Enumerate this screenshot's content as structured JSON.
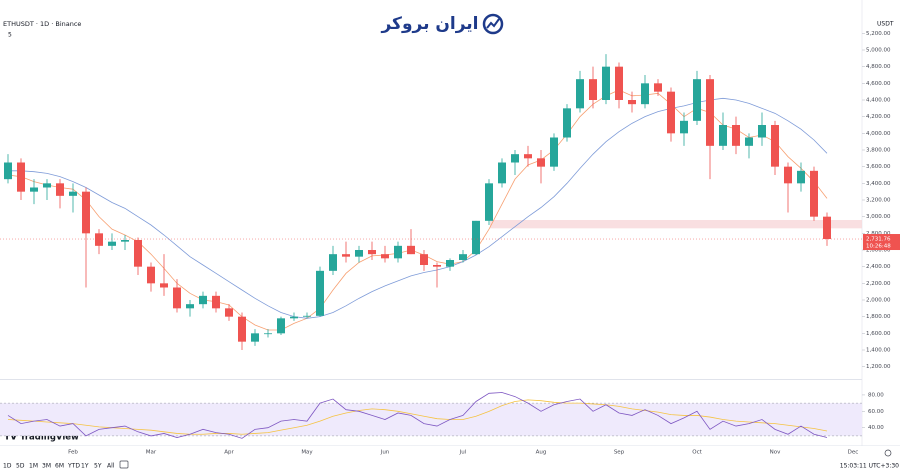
{
  "header": {
    "symbol": "ETHUSDT · 1D · Binance",
    "indicators": "5",
    "currency": "USDT",
    "watermark": "ایران بروکر"
  },
  "footer": {
    "ranges": [
      "1D",
      "5D",
      "1M",
      "3M",
      "6M",
      "YTD",
      "1Y",
      "5Y",
      "All"
    ],
    "clock": "15:03:11 UTC+3:30",
    "brand": "TradingView"
  },
  "chart_data": [
    {
      "type": "candlestick",
      "up_color": "#26a69a",
      "down_color": "#ef5350",
      "categories": [
        null,
        null,
        null,
        null,
        null,
        "Feb",
        null,
        null,
        null,
        null,
        null,
        "Mar",
        null,
        null,
        null,
        null,
        null,
        "Apr",
        null,
        null,
        null,
        null,
        null,
        "May",
        null,
        null,
        null,
        null,
        null,
        "Jun",
        null,
        null,
        null,
        null,
        null,
        "Jul",
        null,
        null,
        null,
        null,
        null,
        "Aug",
        null,
        null,
        null,
        null,
        null,
        "Sep",
        null,
        null,
        null,
        null,
        null,
        "Oct",
        null,
        null,
        null,
        null,
        null,
        "Nov",
        null,
        null,
        null,
        null,
        null,
        "Dec",
        null
      ],
      "open": [
        3450,
        3650,
        3300,
        3350,
        3400,
        3250,
        3300,
        2800,
        2650,
        2700,
        2720,
        2400,
        2200,
        2150,
        1900,
        1950,
        2050,
        1900,
        1800,
        1500,
        1600,
        1600,
        1780,
        1800,
        1810,
        2350,
        2550,
        2520,
        2600,
        2550,
        2500,
        2650,
        2550,
        2420,
        2400,
        2480,
        2550,
        2950,
        3400,
        3650,
        3750,
        3700,
        3600,
        3950,
        4300,
        4650,
        4400,
        4800,
        4400,
        4350,
        4600,
        4500,
        4000,
        4150,
        4650,
        3850,
        4100,
        3850,
        3950,
        4100,
        3600,
        3400,
        3550,
        3000,
        null,
        null,
        null
      ],
      "high": [
        3750,
        3700,
        3450,
        3450,
        3450,
        3400,
        3350,
        2850,
        2800,
        2780,
        2750,
        2450,
        2550,
        2250,
        2000,
        2100,
        2100,
        1950,
        1850,
        1650,
        1650,
        1800,
        1850,
        1850,
        2400,
        2650,
        2700,
        2650,
        2700,
        2650,
        2700,
        2850,
        2600,
        2450,
        2500,
        2600,
        2950,
        3450,
        3700,
        3800,
        3850,
        3800,
        4000,
        4350,
        4750,
        4800,
        4950,
        4850,
        4500,
        4700,
        4650,
        4550,
        4250,
        4750,
        4700,
        4250,
        4200,
        4000,
        4250,
        4150,
        3650,
        3650,
        3600,
        3050,
        null,
        null,
        null
      ],
      "low": [
        3400,
        3200,
        3150,
        3200,
        3100,
        3050,
        2150,
        2550,
        2600,
        2600,
        2300,
        2100,
        2050,
        1850,
        1800,
        1900,
        1850,
        1750,
        1400,
        1450,
        1550,
        1580,
        1750,
        1780,
        1800,
        2300,
        2450,
        2450,
        2480,
        2450,
        2450,
        2550,
        2350,
        2150,
        2350,
        2450,
        2540,
        2900,
        3350,
        3500,
        3600,
        3400,
        3550,
        3900,
        4250,
        4300,
        4350,
        4300,
        4250,
        4300,
        4450,
        3900,
        3850,
        4100,
        3450,
        3800,
        3750,
        3700,
        3850,
        3500,
        3050,
        3300,
        2950,
        2650,
        null,
        null,
        null
      ],
      "close": [
        3650,
        3300,
        3350,
        3400,
        3250,
        3300,
        2800,
        2650,
        2700,
        2720,
        2400,
        2200,
        2150,
        1900,
        1950,
        2050,
        1900,
        1800,
        1500,
        1600,
        1600,
        1780,
        1800,
        1810,
        2350,
        2550,
        2520,
        2600,
        2550,
        2500,
        2650,
        2550,
        2420,
        2400,
        2480,
        2550,
        2950,
        3400,
        3650,
        3750,
        3700,
        3600,
        3950,
        4300,
        4650,
        4400,
        4800,
        4400,
        4350,
        4600,
        4500,
        4000,
        4150,
        4650,
        3850,
        4100,
        3850,
        3950,
        4100,
        3600,
        3400,
        3550,
        3000,
        2731.76,
        null,
        null,
        null
      ],
      "moving_averages": [
        {
          "color": "#f7a072",
          "values": [
            3500,
            3480,
            3420,
            3380,
            3350,
            3330,
            3200,
            3000,
            2850,
            2780,
            2700,
            2550,
            2380,
            2200,
            2080,
            2000,
            1980,
            1940,
            1800,
            1700,
            1640,
            1640,
            1720,
            1780,
            1900,
            2120,
            2320,
            2450,
            2530,
            2540,
            2560,
            2600,
            2540,
            2460,
            2430,
            2460,
            2600,
            2850,
            3150,
            3450,
            3620,
            3680,
            3800,
            3990,
            4200,
            4350,
            4450,
            4520,
            4450,
            4460,
            4480,
            4350,
            4200,
            4300,
            4250,
            4100,
            4050,
            3950,
            3980,
            3900,
            3720,
            3580,
            3420,
            3220,
            null,
            null,
            null
          ]
        },
        {
          "color": "#7e9bd8",
          "values": [
            3550,
            3550,
            3540,
            3520,
            3480,
            3420,
            3350,
            3260,
            3170,
            3100,
            3000,
            2900,
            2780,
            2650,
            2520,
            2420,
            2320,
            2220,
            2120,
            2020,
            1930,
            1850,
            1800,
            1780,
            1800,
            1850,
            1930,
            2020,
            2100,
            2170,
            2230,
            2290,
            2330,
            2360,
            2400,
            2460,
            2540,
            2640,
            2760,
            2880,
            3000,
            3110,
            3240,
            3400,
            3580,
            3750,
            3900,
            4020,
            4120,
            4200,
            4260,
            4300,
            4330,
            4370,
            4400,
            4420,
            4400,
            4360,
            4300,
            4240,
            4150,
            4050,
            3920,
            3760,
            null,
            null,
            null
          ]
        }
      ],
      "zone": [
        2860,
        2960
      ],
      "zone_color": "#f8d7da",
      "last_price": {
        "value": 2731.76,
        "label": "2,731.76"
      },
      "countdown": "10:26:48",
      "ylim": [
        1064,
        5420
      ],
      "yticks": [
        {
          "value": 1200,
          "label": "1,200.00"
        },
        {
          "value": 1400,
          "label": "1,400.00"
        },
        {
          "value": 1600,
          "label": "1,600.00"
        },
        {
          "value": 1800,
          "label": "1,800.00"
        },
        {
          "value": 2000,
          "label": "2,000.00"
        },
        {
          "value": 2200,
          "label": "2,200.00"
        },
        {
          "value": 2400,
          "label": "2,400.00"
        },
        {
          "value": 2600,
          "label": "2,600.00"
        },
        {
          "value": 2800,
          "label": "2,800.00"
        },
        {
          "value": 3000,
          "label": "3,000.00"
        },
        {
          "value": 3200,
          "label": "3,200.00"
        },
        {
          "value": 3400,
          "label": "3,400.00"
        },
        {
          "value": 3600,
          "label": "3,600.00"
        },
        {
          "value": 3800,
          "label": "3,800.00"
        },
        {
          "value": 4000,
          "label": "4,000.00"
        },
        {
          "value": 4200,
          "label": "4,200.00"
        },
        {
          "value": 4400,
          "label": "4,400.00"
        },
        {
          "value": 4600,
          "label": "4,600.00"
        },
        {
          "value": 4800,
          "label": "4,800.00"
        },
        {
          "value": 5000,
          "label": "5,000.00"
        },
        {
          "value": 5200,
          "label": "5,200.00"
        }
      ]
    },
    {
      "type": "line",
      "levels": [
        30,
        70
      ],
      "band_color": "#efeafc",
      "series": [
        {
          "color": "#7e57c2",
          "values": [
            55,
            45,
            48,
            50,
            42,
            45,
            30,
            38,
            40,
            42,
            35,
            30,
            33,
            28,
            32,
            38,
            34,
            32,
            27,
            38,
            40,
            48,
            50,
            48,
            70,
            75,
            62,
            60,
            55,
            50,
            58,
            55,
            45,
            42,
            50,
            55,
            72,
            82,
            83,
            78,
            70,
            60,
            68,
            72,
            75,
            60,
            68,
            58,
            55,
            62,
            55,
            45,
            52,
            60,
            38,
            48,
            42,
            45,
            50,
            38,
            32,
            42,
            32,
            28,
            null,
            null,
            null
          ]
        },
        {
          "color": "#f5c342",
          "values": [
            50,
            49,
            48,
            47,
            46,
            45,
            43,
            41,
            40,
            39,
            38,
            37,
            35,
            33,
            32,
            32,
            33,
            33,
            32,
            33,
            34,
            37,
            40,
            43,
            48,
            54,
            58,
            61,
            63,
            62,
            60,
            57,
            54,
            51,
            50,
            50,
            54,
            60,
            67,
            72,
            74,
            73,
            71,
            70,
            70,
            69,
            68,
            66,
            63,
            61,
            59,
            56,
            55,
            55,
            53,
            50,
            48,
            47,
            46,
            45,
            43,
            41,
            39,
            36,
            null,
            null,
            null
          ]
        }
      ],
      "ylim": [
        25,
        97
      ],
      "yticks": [
        {
          "value": 40,
          "label": "40.00"
        },
        {
          "value": 60,
          "label": "60.00"
        },
        {
          "value": 80,
          "label": "80.00"
        }
      ]
    }
  ]
}
